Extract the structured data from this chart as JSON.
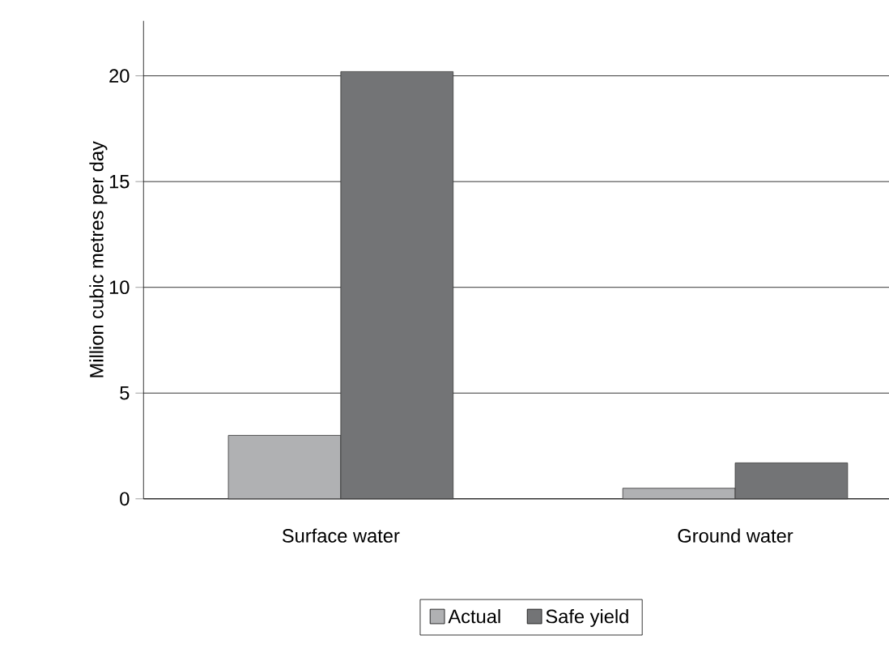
{
  "chart_data": {
    "type": "bar",
    "ylabel": "Million cubic metres per day",
    "categories": [
      "Surface water",
      "Ground water"
    ],
    "series": [
      {
        "name": "Actual",
        "color": "#b0b1b3",
        "values": [
          3.0,
          0.5
        ]
      },
      {
        "name": "Safe yield",
        "color": "#737476",
        "values": [
          20.2,
          1.7
        ]
      }
    ],
    "ylim": [
      0,
      22.6
    ],
    "yticks": [
      0,
      5,
      10,
      15,
      20
    ],
    "grid": "y",
    "legend": "bottom"
  }
}
